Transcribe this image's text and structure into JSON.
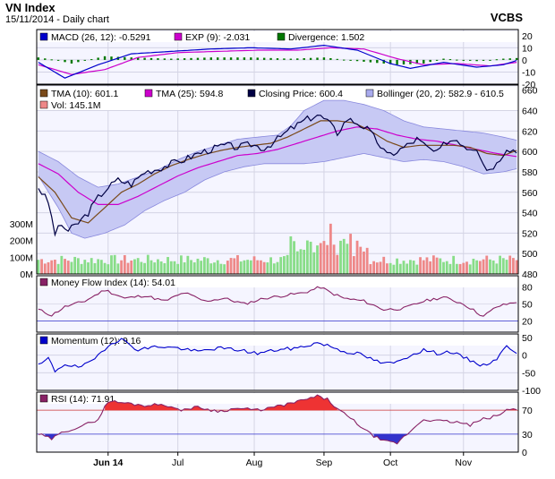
{
  "header": {
    "title": "VN Index",
    "subtitle": "15/11/2014 - Daily chart",
    "brand": "VCBS"
  },
  "chart_data": {
    "type": "line",
    "x_ticks": [
      {
        "label": "Jun 14",
        "i": 21,
        "bold": true
      },
      {
        "label": "Jul",
        "i": 42
      },
      {
        "label": "Aug",
        "i": 65
      },
      {
        "label": "Sep",
        "i": 86
      },
      {
        "label": "Oct",
        "i": 106
      },
      {
        "label": "Nov",
        "i": 128
      }
    ],
    "macd": {
      "legend": {
        "macd": "MACD (26, 12): -0.5291",
        "exp": "EXP (9): -2.031",
        "div": "Divergence: 1.502"
      },
      "ylim": [
        -20,
        25
      ],
      "ticks": [
        {
          "v": 20,
          "t": "20"
        },
        {
          "v": 10,
          "t": "10"
        },
        {
          "v": 0,
          "t": "0"
        },
        {
          "v": -10,
          "t": "-10"
        },
        {
          "v": -20,
          "t": "-20"
        }
      ],
      "macd_key": [
        [
          0,
          -2
        ],
        [
          8,
          -15
        ],
        [
          18,
          -4
        ],
        [
          28,
          5
        ],
        [
          40,
          7
        ],
        [
          52,
          9
        ],
        [
          64,
          10
        ],
        [
          76,
          9
        ],
        [
          86,
          12
        ],
        [
          96,
          8
        ],
        [
          106,
          -3
        ],
        [
          112,
          -7
        ],
        [
          122,
          -2
        ],
        [
          132,
          -6
        ],
        [
          140,
          -4
        ],
        [
          144,
          -0.5
        ]
      ],
      "exp_key": [
        [
          0,
          -4
        ],
        [
          10,
          -12
        ],
        [
          20,
          -8
        ],
        [
          30,
          2
        ],
        [
          42,
          6
        ],
        [
          54,
          7
        ],
        [
          66,
          8
        ],
        [
          78,
          8
        ],
        [
          88,
          10
        ],
        [
          98,
          9
        ],
        [
          108,
          1
        ],
        [
          116,
          -4
        ],
        [
          126,
          -3
        ],
        [
          136,
          -5
        ],
        [
          144,
          -2
        ]
      ],
      "div_key": [
        [
          0,
          2
        ],
        [
          5,
          0
        ],
        [
          10,
          -3
        ],
        [
          20,
          3
        ],
        [
          28,
          2
        ],
        [
          40,
          1
        ],
        [
          52,
          2
        ],
        [
          64,
          2
        ],
        [
          76,
          1
        ],
        [
          86,
          2
        ],
        [
          96,
          -1
        ],
        [
          108,
          -4
        ],
        [
          116,
          -3
        ],
        [
          122,
          1
        ],
        [
          132,
          -1
        ],
        [
          140,
          1
        ],
        [
          144,
          1.5
        ]
      ]
    },
    "price": {
      "legend": {
        "tma10": "TMA (10): 601.1",
        "tma25": "TMA (25): 594.8",
        "close": "Closing Price: 600.4",
        "boll": "Bollinger (20, 2): 582.9 - 610.5",
        "vol": "Vol: 145.1M"
      },
      "ylim": [
        480,
        665
      ],
      "ticks": [
        660,
        640,
        620,
        600,
        580,
        560,
        540,
        520,
        500,
        480
      ],
      "close_key": [
        [
          0,
          565
        ],
        [
          3,
          550
        ],
        [
          5,
          520
        ],
        [
          7,
          528
        ],
        [
          9,
          522
        ],
        [
          12,
          530
        ],
        [
          15,
          540
        ],
        [
          18,
          555
        ],
        [
          21,
          565
        ],
        [
          24,
          572
        ],
        [
          28,
          568
        ],
        [
          32,
          580
        ],
        [
          36,
          583
        ],
        [
          40,
          588
        ],
        [
          44,
          592
        ],
        [
          48,
          598
        ],
        [
          52,
          602
        ],
        [
          56,
          606
        ],
        [
          60,
          604
        ],
        [
          64,
          607
        ],
        [
          68,
          603
        ],
        [
          72,
          612
        ],
        [
          76,
          622
        ],
        [
          80,
          630
        ],
        [
          84,
          636
        ],
        [
          87,
          630
        ],
        [
          90,
          618
        ],
        [
          93,
          632
        ],
        [
          96,
          628
        ],
        [
          99,
          622
        ],
        [
          102,
          610
        ],
        [
          105,
          596
        ],
        [
          108,
          600
        ],
        [
          111,
          606
        ],
        [
          114,
          612
        ],
        [
          117,
          604
        ],
        [
          120,
          598
        ],
        [
          123,
          610
        ],
        [
          126,
          612
        ],
        [
          129,
          604
        ],
        [
          132,
          604
        ],
        [
          135,
          582
        ],
        [
          138,
          588
        ],
        [
          141,
          604
        ],
        [
          144,
          600
        ]
      ],
      "tma10_key": [
        [
          0,
          575
        ],
        [
          5,
          560
        ],
        [
          10,
          535
        ],
        [
          15,
          530
        ],
        [
          20,
          545
        ],
        [
          25,
          560
        ],
        [
          30,
          568
        ],
        [
          35,
          578
        ],
        [
          40,
          586
        ],
        [
          45,
          592
        ],
        [
          50,
          597
        ],
        [
          55,
          601
        ],
        [
          60,
          604
        ],
        [
          65,
          606
        ],
        [
          70,
          608
        ],
        [
          75,
          614
        ],
        [
          80,
          622
        ],
        [
          85,
          630
        ],
        [
          90,
          630
        ],
        [
          95,
          628
        ],
        [
          100,
          620
        ],
        [
          105,
          610
        ],
        [
          110,
          604
        ],
        [
          115,
          606
        ],
        [
          120,
          606
        ],
        [
          125,
          606
        ],
        [
          130,
          604
        ],
        [
          135,
          598
        ],
        [
          140,
          596
        ],
        [
          144,
          601
        ]
      ],
      "tma25_key": [
        [
          0,
          588
        ],
        [
          6,
          578
        ],
        [
          12,
          560
        ],
        [
          18,
          548
        ],
        [
          24,
          548
        ],
        [
          30,
          556
        ],
        [
          36,
          566
        ],
        [
          42,
          576
        ],
        [
          48,
          584
        ],
        [
          54,
          590
        ],
        [
          60,
          596
        ],
        [
          66,
          598
        ],
        [
          72,
          602
        ],
        [
          78,
          608
        ],
        [
          84,
          614
        ],
        [
          90,
          620
        ],
        [
          96,
          624
        ],
        [
          102,
          622
        ],
        [
          108,
          616
        ],
        [
          114,
          612
        ],
        [
          120,
          610
        ],
        [
          126,
          606
        ],
        [
          132,
          602
        ],
        [
          138,
          598
        ],
        [
          144,
          595
        ]
      ],
      "boll_up_key": [
        [
          0,
          600
        ],
        [
          6,
          590
        ],
        [
          12,
          575
        ],
        [
          18,
          565
        ],
        [
          24,
          568
        ],
        [
          30,
          575
        ],
        [
          36,
          582
        ],
        [
          42,
          592
        ],
        [
          48,
          600
        ],
        [
          54,
          606
        ],
        [
          60,
          612
        ],
        [
          66,
          614
        ],
        [
          72,
          616
        ],
        [
          76,
          625
        ],
        [
          80,
          640
        ],
        [
          86,
          650
        ],
        [
          92,
          650
        ],
        [
          98,
          646
        ],
        [
          104,
          640
        ],
        [
          110,
          630
        ],
        [
          116,
          624
        ],
        [
          122,
          622
        ],
        [
          128,
          620
        ],
        [
          134,
          618
        ],
        [
          140,
          614
        ],
        [
          144,
          611
        ]
      ],
      "boll_lo_key": [
        [
          0,
          576
        ],
        [
          6,
          545
        ],
        [
          10,
          520
        ],
        [
          14,
          515
        ],
        [
          20,
          520
        ],
        [
          26,
          528
        ],
        [
          32,
          542
        ],
        [
          38,
          552
        ],
        [
          44,
          560
        ],
        [
          50,
          572
        ],
        [
          56,
          580
        ],
        [
          62,
          585
        ],
        [
          68,
          588
        ],
        [
          74,
          588
        ],
        [
          80,
          588
        ],
        [
          86,
          590
        ],
        [
          92,
          594
        ],
        [
          98,
          598
        ],
        [
          104,
          594
        ],
        [
          110,
          590
        ],
        [
          116,
          592
        ],
        [
          122,
          590
        ],
        [
          128,
          585
        ],
        [
          134,
          578
        ],
        [
          140,
          580
        ],
        [
          144,
          583
        ]
      ]
    },
    "volume": {
      "ylim": [
        0,
        310
      ],
      "ticks": [
        {
          "v": 300,
          "t": "300M"
        },
        {
          "v": 200,
          "t": "200M"
        },
        {
          "v": 100,
          "t": "100M"
        },
        {
          "v": 0,
          "t": "0M"
        }
      ]
    },
    "mfi": {
      "legend": "Money Flow Index (14): 54.01",
      "ylim": [
        0,
        100
      ],
      "ticks": [
        80,
        50,
        20
      ],
      "key": [
        [
          0,
          40
        ],
        [
          4,
          30
        ],
        [
          8,
          45
        ],
        [
          14,
          55
        ],
        [
          20,
          75
        ],
        [
          26,
          60
        ],
        [
          32,
          65
        ],
        [
          38,
          55
        ],
        [
          44,
          70
        ],
        [
          50,
          55
        ],
        [
          56,
          60
        ],
        [
          62,
          50
        ],
        [
          68,
          60
        ],
        [
          74,
          65
        ],
        [
          80,
          70
        ],
        [
          85,
          80
        ],
        [
          88,
          70
        ],
        [
          92,
          60
        ],
        [
          98,
          55
        ],
        [
          104,
          40
        ],
        [
          110,
          42
        ],
        [
          116,
          55
        ],
        [
          122,
          62
        ],
        [
          128,
          50
        ],
        [
          134,
          28
        ],
        [
          138,
          45
        ],
        [
          144,
          54
        ]
      ]
    },
    "momentum": {
      "legend": "Momentum (12): 9.16",
      "ylim": [
        -100,
        60
      ],
      "ticks": [
        {
          "v": 50,
          "t": "50"
        },
        {
          "v": 0,
          "t": "0"
        },
        {
          "v": -50,
          "t": "-50"
        },
        {
          "v": -100,
          "t": "-100"
        }
      ],
      "key": [
        [
          0,
          -30
        ],
        [
          3,
          -10
        ],
        [
          5,
          -45
        ],
        [
          8,
          -25
        ],
        [
          12,
          -35
        ],
        [
          16,
          -20
        ],
        [
          19,
          10
        ],
        [
          22,
          35
        ],
        [
          25,
          45
        ],
        [
          30,
          15
        ],
        [
          36,
          25
        ],
        [
          42,
          20
        ],
        [
          48,
          10
        ],
        [
          54,
          20
        ],
        [
          60,
          15
        ],
        [
          66,
          5
        ],
        [
          72,
          15
        ],
        [
          78,
          20
        ],
        [
          84,
          35
        ],
        [
          88,
          25
        ],
        [
          92,
          10
        ],
        [
          96,
          5
        ],
        [
          100,
          -10
        ],
        [
          104,
          -25
        ],
        [
          108,
          -20
        ],
        [
          112,
          0
        ],
        [
          116,
          15
        ],
        [
          120,
          5
        ],
        [
          124,
          10
        ],
        [
          130,
          -15
        ],
        [
          134,
          -30
        ],
        [
          138,
          -10
        ],
        [
          141,
          25
        ],
        [
          144,
          9
        ]
      ]
    },
    "rsi": {
      "legend": "RSI (14): 71.91",
      "ylim": [
        0,
        100
      ],
      "ticks": [
        {
          "v": 70,
          "t": "70",
          "c": "#cc3333"
        },
        {
          "v": 30,
          "t": "30",
          "c": "#3333cc"
        },
        {
          "v": 0,
          "t": "0",
          "c": "#000000"
        }
      ],
      "key": [
        [
          0,
          30
        ],
        [
          4,
          22
        ],
        [
          8,
          35
        ],
        [
          14,
          45
        ],
        [
          18,
          55
        ],
        [
          21,
          85
        ],
        [
          26,
          82
        ],
        [
          32,
          78
        ],
        [
          38,
          80
        ],
        [
          42,
          70
        ],
        [
          48,
          75
        ],
        [
          54,
          68
        ],
        [
          60,
          73
        ],
        [
          66,
          70
        ],
        [
          72,
          76
        ],
        [
          78,
          84
        ],
        [
          84,
          93
        ],
        [
          87,
          88
        ],
        [
          90,
          72
        ],
        [
          95,
          52
        ],
        [
          100,
          30
        ],
        [
          104,
          18
        ],
        [
          108,
          15
        ],
        [
          112,
          35
        ],
        [
          116,
          55
        ],
        [
          120,
          52
        ],
        [
          126,
          50
        ],
        [
          130,
          45
        ],
        [
          134,
          55
        ],
        [
          138,
          60
        ],
        [
          141,
          70
        ],
        [
          144,
          72
        ]
      ]
    },
    "colors": {
      "macd": "#0000cc",
      "exp": "#cc00cc",
      "divergence": "#007700",
      "tma10": "#7a4a1a",
      "tma25": "#cc00cc",
      "close": "#000044",
      "bollinger_fill": "#c7c9f4",
      "bollinger_edge": "#8888dd",
      "vol_up": "#88dd88",
      "vol_down": "#ee8888",
      "mfi_line": "#882266",
      "momentum": "#0000cc",
      "rsi_line": "#882266",
      "overbought": "#ee3333",
      "oversold": "#3333cc",
      "panel_bg": "#f5f5ff"
    }
  }
}
